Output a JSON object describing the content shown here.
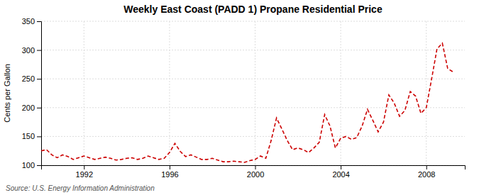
{
  "chart_data": {
    "type": "line",
    "title": "Weekly East Coast (PADD 1) Propane Residential Price",
    "ylabel": "Cents per Gallon",
    "source": "Source: U.S. Energy Information Administration",
    "color": "#cc0000",
    "line_style": "dashed",
    "grid": true,
    "xlim": [
      1990.0,
      2009.8
    ],
    "xticks": [
      1992,
      1996,
      2000,
      2004,
      2008
    ],
    "ylim": [
      100,
      350
    ],
    "yticks": [
      100,
      150,
      200,
      250,
      300,
      350
    ],
    "x": [
      1990.0,
      1990.25,
      1990.5,
      1990.75,
      1991.0,
      1991.25,
      1991.5,
      1991.75,
      1992.0,
      1992.25,
      1992.5,
      1992.75,
      1993.0,
      1993.25,
      1993.5,
      1993.75,
      1994.0,
      1994.25,
      1994.5,
      1994.75,
      1995.0,
      1995.25,
      1995.5,
      1995.75,
      1996.0,
      1996.25,
      1996.5,
      1996.75,
      1997.0,
      1997.25,
      1997.5,
      1997.75,
      1998.0,
      1998.25,
      1998.5,
      1998.75,
      1999.0,
      1999.25,
      1999.5,
      1999.75,
      2000.0,
      2000.25,
      2000.5,
      2000.75,
      2001.0,
      2001.25,
      2001.5,
      2001.75,
      2002.0,
      2002.25,
      2002.5,
      2002.75,
      2003.0,
      2003.25,
      2003.5,
      2003.75,
      2004.0,
      2004.25,
      2004.5,
      2004.75,
      2005.0,
      2005.25,
      2005.5,
      2005.75,
      2006.0,
      2006.25,
      2006.5,
      2006.75,
      2007.0,
      2007.25,
      2007.5,
      2007.75,
      2008.0,
      2008.25,
      2008.5,
      2008.75,
      2009.0,
      2009.25
    ],
    "values": [
      125,
      127,
      118,
      113,
      118,
      115,
      110,
      113,
      116,
      113,
      110,
      112,
      114,
      112,
      109,
      110,
      112,
      113,
      110,
      112,
      116,
      113,
      110,
      112,
      122,
      138,
      124,
      115,
      118,
      114,
      110,
      110,
      112,
      109,
      106,
      106,
      107,
      106,
      105,
      108,
      110,
      116,
      112,
      143,
      182,
      163,
      143,
      127,
      130,
      127,
      122,
      130,
      140,
      188,
      168,
      130,
      147,
      150,
      145,
      148,
      168,
      197,
      178,
      158,
      175,
      222,
      208,
      185,
      195,
      228,
      220,
      190,
      200,
      250,
      302,
      312,
      268,
      262
    ]
  }
}
